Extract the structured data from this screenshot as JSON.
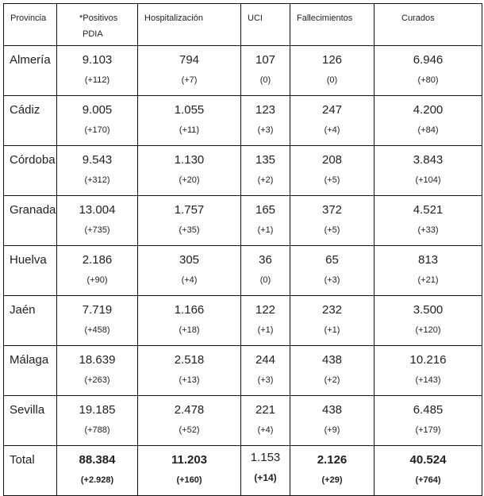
{
  "headers": {
    "provincia": "Provincia",
    "positivos_line1": "*Positivos",
    "positivos_line2": "PDIA",
    "hospitalizacion": "Hospitalización",
    "uci": "UCI",
    "fallecimientos": "Fallecimientos",
    "curados": "Curados"
  },
  "rows": [
    {
      "provincia": "Almería",
      "positivos": "9.103",
      "positivos_d": "(+112)",
      "hosp": "794",
      "hosp_d": "(+7)",
      "uci": "107",
      "uci_d": "(0)",
      "fall": "126",
      "fall_d": "(0)",
      "cur": "6.946",
      "cur_d": "(+80)"
    },
    {
      "provincia": "Cádiz",
      "positivos": "9.005",
      "positivos_d": "(+170)",
      "hosp": "1.055",
      "hosp_d": "(+11)",
      "uci": "123",
      "uci_d": "(+3)",
      "fall": "247",
      "fall_d": "(+4)",
      "cur": "4.200",
      "cur_d": "(+84)"
    },
    {
      "provincia": "Córdoba",
      "positivos": "9.543",
      "positivos_d": "(+312)",
      "hosp": "1.130",
      "hosp_d": "(+20)",
      "uci": "135",
      "uci_d": "(+2)",
      "fall": "208",
      "fall_d": "(+5)",
      "cur": "3.843",
      "cur_d": "(+104)"
    },
    {
      "provincia": "Granada",
      "positivos": "13.004",
      "positivos_d": "(+735)",
      "hosp": "1.757",
      "hosp_d": "(+35)",
      "uci": "165",
      "uci_d": "(+1)",
      "fall": "372",
      "fall_d": "(+5)",
      "cur": "4.521",
      "cur_d": "(+33)"
    },
    {
      "provincia": "Huelva",
      "positivos": "2.186",
      "positivos_d": "(+90)",
      "hosp": "305",
      "hosp_d": "(+4)",
      "uci": "36",
      "uci_d": "(0)",
      "fall": "65",
      "fall_d": "(+3)",
      "cur": "813",
      "cur_d": "(+21)"
    },
    {
      "provincia": "Jaén",
      "positivos": "7.719",
      "positivos_d": "(+458)",
      "hosp": "1.166",
      "hosp_d": "(+18)",
      "uci": "122",
      "uci_d": "(+1)",
      "fall": "232",
      "fall_d": "(+1)",
      "cur": "3.500",
      "cur_d": "(+120)"
    },
    {
      "provincia": "Málaga",
      "positivos": "18.639",
      "positivos_d": "(+263)",
      "hosp": "2.518",
      "hosp_d": "(+13)",
      "uci": "244",
      "uci_d": "(+3)",
      "fall": "438",
      "fall_d": "(+2)",
      "cur": "10.216",
      "cur_d": "(+143)"
    },
    {
      "provincia": "Sevilla",
      "positivos": "19.185",
      "positivos_d": "(+788)",
      "hosp": "2.478",
      "hosp_d": "(+52)",
      "uci": "221",
      "uci_d": "(+4)",
      "fall": "438",
      "fall_d": "(+9)",
      "cur": "6.485",
      "cur_d": "(+179)"
    }
  ],
  "total": {
    "provincia": "Total",
    "positivos": "88.384",
    "positivos_d": "(+2.928)",
    "hosp": "11.203",
    "hosp_d": "(+160)",
    "uci": "1.153",
    "uci_d": "(+14)",
    "fall": "2.126",
    "fall_d": "(+29)",
    "cur": "40.524",
    "cur_d": "(+764)"
  }
}
